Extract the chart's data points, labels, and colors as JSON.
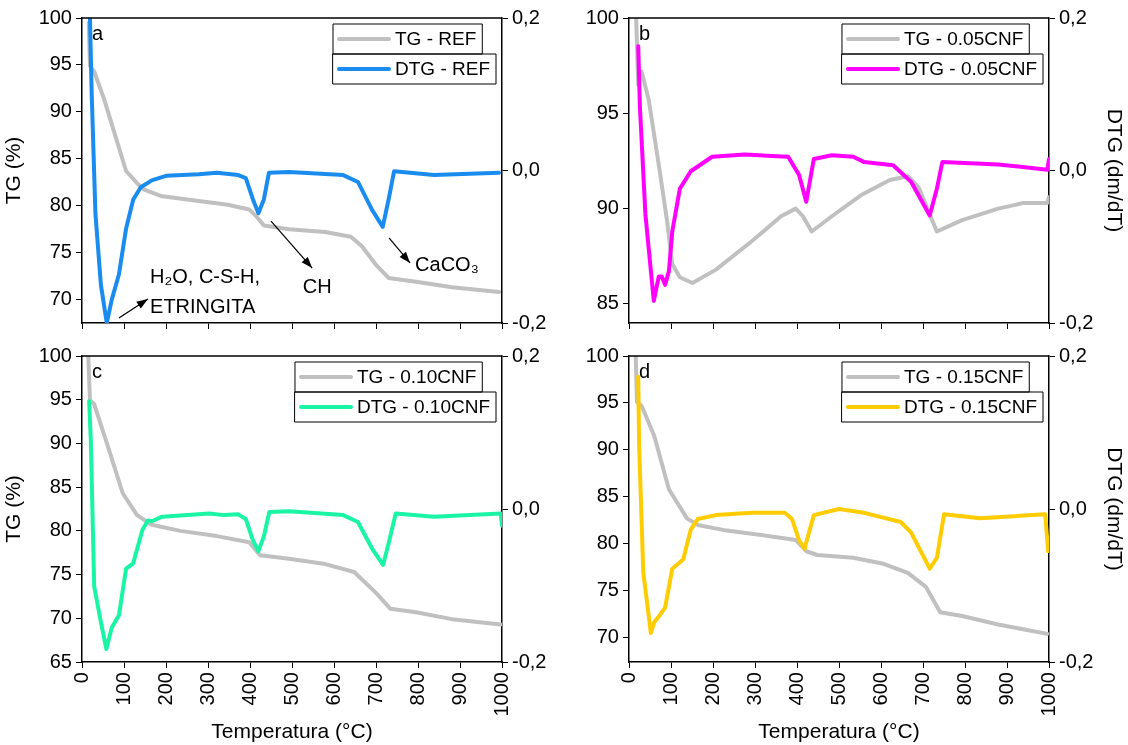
{
  "chart_data": [
    {
      "type": "line",
      "ylabel": "TG (%)",
      "xlim": [
        0,
        1000
      ],
      "xticks": [
        0,
        100,
        200,
        300,
        400,
        500,
        600,
        700,
        800,
        900,
        1000
      ],
      "ylim": [
        67.5,
        100
      ],
      "yticks": [
        70,
        75,
        80,
        85,
        90,
        95,
        100
      ],
      "y2lim": [
        -0.2,
        0.2
      ],
      "y2ticks": [
        {
          "value": -0.2,
          "label": "-0,2"
        },
        {
          "value": 0,
          "label": "0,0"
        },
        {
          "value": 0.2,
          "label": "0,2"
        }
      ],
      "tick_labels": "y",
      "legend": "top right",
      "annotations": [
        "a",
        "H₂O, C-S-H, ETRINGITA",
        "CH",
        "CaCO₃"
      ],
      "series": [
        {
          "name": "TG - REF",
          "color": "#c0c0c0",
          "x": [
            16,
            19,
            29,
            53,
            79,
            105,
            131,
            148,
            191,
            278,
            347,
            398,
            416,
            433,
            493,
            579,
            640,
            666,
            700,
            730,
            795,
            881,
            993
          ],
          "values": [
            99.5,
            94.9,
            94.3,
            91.3,
            87.5,
            83.7,
            82.4,
            81.7,
            81.0,
            80.5,
            80.1,
            79.6,
            78.8,
            77.9,
            77.5,
            77.2,
            76.7,
            75.7,
            73.7,
            72.3,
            71.9,
            71.3,
            70.8
          ]
        },
        {
          "name": "DTG - REF",
          "color": "#1a8cf0",
          "axis": "y2",
          "x": [
            19,
            23,
            32,
            45,
            59,
            71,
            88,
            105,
            122,
            140,
            166,
            200,
            278,
            321,
            372,
            390,
            407,
            420,
            433,
            445,
            493,
            622,
            657,
            691,
            716,
            730,
            743,
            838,
            993
          ],
          "values": [
            0.2,
            0.102,
            -0.057,
            -0.15,
            -0.2,
            -0.169,
            -0.136,
            -0.076,
            -0.038,
            -0.022,
            -0.013,
            -0.007,
            -0.005,
            -0.003,
            -0.006,
            -0.01,
            -0.038,
            -0.056,
            -0.038,
            -0.003,
            -0.002,
            -0.006,
            -0.015,
            -0.052,
            -0.074,
            -0.038,
            -0.001,
            -0.006,
            -0.003
          ]
        }
      ]
    },
    {
      "type": "line",
      "y2label": "DTG (dm/dT)",
      "xlim": [
        0,
        1000
      ],
      "xticks": [
        0,
        100,
        200,
        300,
        400,
        500,
        600,
        700,
        800,
        900,
        1000
      ],
      "ylim": [
        84,
        100
      ],
      "yticks": [
        85,
        90,
        95,
        100
      ],
      "y2lim": [
        -0.2,
        0.2
      ],
      "y2ticks": [
        {
          "value": -0.2,
          "label": "-0,2"
        },
        {
          "value": 0,
          "label": "0,0"
        },
        {
          "value": 0.2,
          "label": "0,2"
        }
      ],
      "tick_labels": "y",
      "legend": "top right",
      "annotations": [
        "b"
      ],
      "series": [
        {
          "name": "TG - 0.05CNF",
          "color": "#c0c0c0",
          "x": [
            17,
            22,
            30,
            47,
            73,
            91,
            103,
            121,
            151,
            207,
            293,
            362,
            397,
            414,
            435,
            483,
            552,
            621,
            664,
            690,
            733,
            793,
            879,
            940,
            996,
            1000
          ],
          "values": [
            100,
            96.5,
            97.2,
            95.7,
            92.0,
            89.3,
            87.1,
            86.4,
            86.1,
            86.8,
            88.3,
            89.6,
            90.0,
            89.6,
            88.8,
            89.6,
            90.7,
            91.5,
            91.7,
            91.1,
            88.8,
            89.4,
            90.0,
            90.3,
            90.3,
            90.6
          ]
        },
        {
          "name": "DTG - 0.05CNF",
          "color": "#ff00ff",
          "axis": "y2",
          "x": [
            22,
            26,
            39,
            59,
            71,
            78,
            86,
            95,
            103,
            121,
            147,
            198,
            276,
            379,
            405,
            422,
            440,
            483,
            534,
            560,
            629,
            672,
            716,
            733,
            746,
            879,
            996,
            1000
          ],
          "values": [
            0.163,
            0.083,
            -0.057,
            -0.171,
            -0.139,
            -0.139,
            -0.15,
            -0.132,
            -0.08,
            -0.024,
            -0.001,
            0.018,
            0.021,
            0.018,
            -0.006,
            -0.041,
            0.015,
            0.02,
            0.018,
            0.011,
            0.007,
            -0.015,
            -0.059,
            -0.024,
            0.011,
            0.008,
            0.001,
            0.015
          ]
        }
      ]
    },
    {
      "type": "line",
      "ylabel": "TG (%)",
      "xlabel": "Temperatura (°C)",
      "xlim": [
        0,
        1000
      ],
      "xticks": [
        0,
        100,
        200,
        300,
        400,
        500,
        600,
        700,
        800,
        900,
        1000
      ],
      "ylim": [
        65,
        100
      ],
      "yticks": [
        65,
        70,
        75,
        80,
        85,
        90,
        95,
        100
      ],
      "y2lim": [
        -0.2,
        0.2
      ],
      "y2ticks": [
        {
          "value": -0.2,
          "label": "-0,2"
        },
        {
          "value": 0,
          "label": "0,0"
        },
        {
          "value": 0.2,
          "label": "0,2"
        }
      ],
      "legend": "top right",
      "annotations": [
        "c"
      ],
      "series": [
        {
          "name": "TG - 0.10CNF",
          "color": "#c0c0c0",
          "x": [
            15,
            19,
            29,
            62,
            97,
            131,
            166,
            234,
            321,
            398,
            424,
            493,
            579,
            648,
            700,
            734,
            795,
            881,
            997
          ],
          "values": [
            100,
            94.9,
            94.5,
            89.6,
            84.3,
            81.8,
            80.7,
            80.0,
            79.4,
            78.7,
            77.2,
            76.8,
            76.2,
            75.3,
            72.9,
            71.1,
            70.7,
            69.9,
            69.3
          ]
        },
        {
          "name": "DTG - 0.10CNF",
          "color": "#19f5a5",
          "axis": "y2",
          "x": [
            17,
            21,
            29,
            45,
            58,
            71,
            88,
            105,
            122,
            144,
            157,
            166,
            191,
            303,
            338,
            372,
            390,
            407,
            420,
            433,
            446,
            493,
            622,
            657,
            691,
            717,
            730,
            747,
            838,
            997,
            1000
          ],
          "values": [
            0.141,
            0.09,
            -0.101,
            -0.148,
            -0.183,
            -0.155,
            -0.139,
            -0.078,
            -0.071,
            -0.027,
            -0.015,
            -0.016,
            -0.01,
            -0.006,
            -0.008,
            -0.007,
            -0.013,
            -0.041,
            -0.055,
            -0.036,
            -0.004,
            -0.003,
            -0.008,
            -0.017,
            -0.052,
            -0.073,
            -0.045,
            -0.006,
            -0.01,
            -0.006,
            -0.022
          ]
        }
      ]
    },
    {
      "type": "line",
      "xlabel": "Temperatura (°C)",
      "y2label": "DTG (dm/dT)",
      "xlim": [
        0,
        1000
      ],
      "xticks": [
        0,
        100,
        200,
        300,
        400,
        500,
        600,
        700,
        800,
        900,
        1000
      ],
      "ylim": [
        67.4,
        100
      ],
      "yticks": [
        70,
        75,
        80,
        85,
        90,
        95,
        100
      ],
      "y2lim": [
        -0.2,
        0.2
      ],
      "y2ticks": [
        {
          "value": -0.2,
          "label": "-0,2"
        },
        {
          "value": 0,
          "label": "0,0"
        },
        {
          "value": 0.2,
          "label": "0,2"
        }
      ],
      "legend": "top right",
      "annotations": [
        "d"
      ],
      "series": [
        {
          "name": "TG - 0.15CNF",
          "color": "#c0c0c0",
          "x": [
            16,
            19,
            30,
            60,
            95,
            138,
            164,
            233,
            319,
            397,
            422,
            448,
            534,
            603,
            664,
            707,
            741,
            793,
            879,
            996
          ],
          "values": [
            100,
            95.1,
            94.7,
            91.5,
            85.8,
            82.7,
            82.0,
            81.4,
            80.9,
            80.4,
            79.2,
            78.8,
            78.5,
            77.9,
            76.9,
            75.4,
            72.7,
            72.3,
            71.4,
            70.4
          ]
        },
        {
          "name": "DTG - 0.15CNF",
          "color": "#ffcc00",
          "axis": "y2",
          "x": [
            22,
            24,
            34,
            52,
            60,
            73,
            86,
            103,
            129,
            147,
            164,
            207,
            293,
            371,
            388,
            405,
            418,
            440,
            500,
            560,
            647,
            672,
            716,
            733,
            750,
            836,
            991,
            998
          ],
          "values": [
            0.173,
            0.085,
            -0.083,
            -0.162,
            -0.148,
            -0.139,
            -0.129,
            -0.078,
            -0.066,
            -0.027,
            -0.013,
            -0.008,
            -0.005,
            -0.005,
            -0.013,
            -0.041,
            -0.052,
            -0.008,
            0.0,
            -0.005,
            -0.017,
            -0.031,
            -0.078,
            -0.064,
            -0.007,
            -0.012,
            -0.007,
            -0.055
          ]
        }
      ]
    }
  ]
}
